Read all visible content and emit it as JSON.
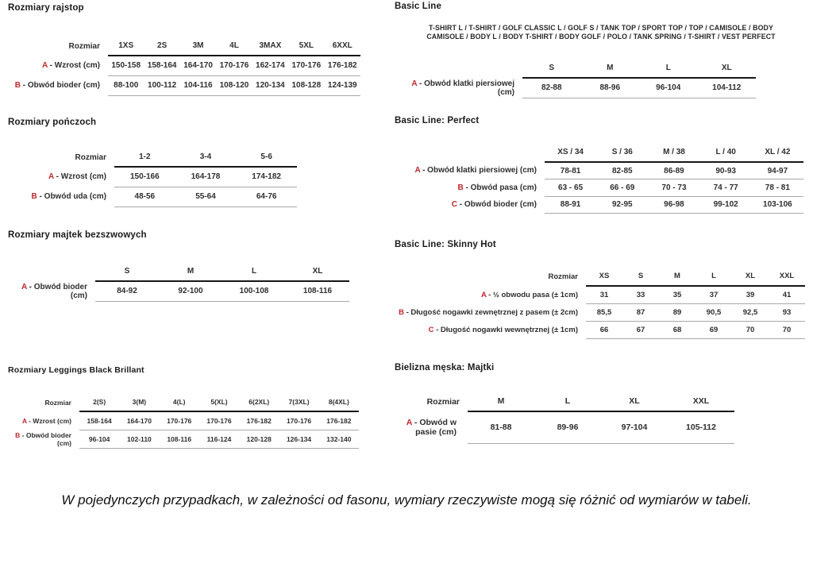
{
  "colors": {
    "accent_red": "#c1272d",
    "text_dark": "#2e2e2e",
    "rule_dark": "#161616",
    "rule_light": "#a8a8a8"
  },
  "left": {
    "rajstopy": {
      "title": "Rozmiary rajstop",
      "table": {
        "corner_label": "Rozmiar",
        "columns": [
          "1XS",
          "2S",
          "3M",
          "4L",
          "3MAX",
          "5XL",
          "6XXL"
        ],
        "rows": [
          {
            "key": "A",
            "label": "- Wzrost (cm)",
            "values": [
              "150-158",
              "158-164",
              "164-170",
              "170-176",
              "162-174",
              "170-176",
              "176-182"
            ]
          },
          {
            "key": "B",
            "label": "- Obwód bioder (cm)",
            "values": [
              "88-100",
              "100-112",
              "104-116",
              "108-120",
              "120-134",
              "108-128",
              "124-139"
            ]
          }
        ]
      }
    },
    "ponczochy": {
      "title": "Rozmiary pończoch",
      "table": {
        "corner_label": "Rozmiar",
        "columns": [
          "1-2",
          "3-4",
          "5-6"
        ],
        "rows": [
          {
            "key": "A",
            "label": "- Wzrost (cm)",
            "values": [
              "150-166",
              "164-178",
              "174-182"
            ]
          },
          {
            "key": "B",
            "label": "- Obwód uda (cm)",
            "values": [
              "48-56",
              "55-64",
              "64-76"
            ]
          }
        ]
      }
    },
    "majtki_bezszwowe": {
      "title": "Rozmiary majtek bezszwowych",
      "table": {
        "corner_label": "",
        "columns": [
          "S",
          "M",
          "L",
          "XL"
        ],
        "rows": [
          {
            "key": "A",
            "label": "- Obwód bioder (cm)",
            "values": [
              "84-92",
              "92-100",
              "100-108",
              "108-116"
            ]
          }
        ]
      }
    },
    "leggings": {
      "title": "Rozmiary Leggings Black Brillant",
      "table": {
        "corner_label": "Rozmiar",
        "columns": [
          "2(S)",
          "3(M)",
          "4(L)",
          "5(XL)",
          "6(2XL)",
          "7(3XL)",
          "8(4XL)"
        ],
        "rows": [
          {
            "key": "A",
            "label": "- Wzrost (cm)",
            "values": [
              "158-164",
              "164-170",
              "170-176",
              "170-176",
              "176-182",
              "170-176",
              "176-182"
            ]
          },
          {
            "key": "B",
            "label": "- Obwód bioder (cm)",
            "values": [
              "96-104",
              "102-110",
              "108-116",
              "116-124",
              "120-128",
              "126-134",
              "132-140"
            ]
          }
        ]
      }
    }
  },
  "right": {
    "basic_line": {
      "title": "Basic Line",
      "products_line1": "T-SHIRT L / T-SHIRT / GOLF CLASSIC L / GOLF S / TANK TOP / SPORT TOP / TOP / CAMISOLE / BODY",
      "products_line2": "CAMISOLE / BODY L / BODY T-SHIRT / BODY GOLF / POLO / TANK SPRING / T-SHIRT / VEST PERFECT",
      "table": {
        "corner_label": "",
        "columns": [
          "S",
          "M",
          "L",
          "XL"
        ],
        "rows": [
          {
            "key": "A",
            "label": "- Obwód klatki piersiowej (cm)",
            "values": [
              "82-88",
              "88-96",
              "96-104",
              "104-112"
            ]
          }
        ]
      }
    },
    "perfect": {
      "title": "Basic Line: Perfect",
      "table": {
        "corner_label": "",
        "columns": [
          "XS / 34",
          "S / 36",
          "M / 38",
          "L / 40",
          "XL / 42"
        ],
        "rows": [
          {
            "key": "A",
            "label": "- Obwód klatki piersiowej (cm)",
            "values": [
              "78-81",
              "82-85",
              "86-89",
              "90-93",
              "94-97"
            ]
          },
          {
            "key": "B",
            "label": "- Obwód pasa (cm)",
            "values": [
              "63 - 65",
              "66 - 69",
              "70 - 73",
              "74 - 77",
              "78 - 81"
            ]
          },
          {
            "key": "C",
            "label": "- Obwód bioder (cm)",
            "values": [
              "88-91",
              "92-95",
              "96-98",
              "99-102",
              "103-106"
            ]
          }
        ]
      }
    },
    "skinny_hot": {
      "title": "Basic Line: Skinny Hot",
      "table": {
        "corner_label": "Rozmiar",
        "columns": [
          "XS",
          "S",
          "M",
          "L",
          "XL",
          "XXL"
        ],
        "rows": [
          {
            "key": "A",
            "label": "- ½ obwodu pasa (± 1cm)",
            "values": [
              "31",
              "33",
              "35",
              "37",
              "39",
              "41"
            ]
          },
          {
            "key": "B",
            "label": "- Długość nogawki zewnętrznej z pasem (± 2cm)",
            "values": [
              "85,5",
              "87",
              "89",
              "90,5",
              "92,5",
              "93"
            ]
          },
          {
            "key": "C",
            "label": "- Długość nogawki wewnętrznej (± 1cm)",
            "values": [
              "66",
              "67",
              "68",
              "69",
              "70",
              "70"
            ]
          }
        ]
      }
    },
    "majtki_meskie": {
      "title": "Bielizna męska: Majtki",
      "table": {
        "corner_label": "Rozmiar",
        "columns": [
          "M",
          "L",
          "XL",
          "XXL"
        ],
        "rows": [
          {
            "key": "A",
            "label": "- Obwód w pasie (cm)",
            "values": [
              "81-88",
              "89-96",
              "97-104",
              "105-112"
            ]
          }
        ]
      }
    }
  },
  "footer_note": "W pojedynczych przypadkach, w zależności od fasonu, wymiary rzeczywiste mogą się różnić od wymiarów w tabeli."
}
